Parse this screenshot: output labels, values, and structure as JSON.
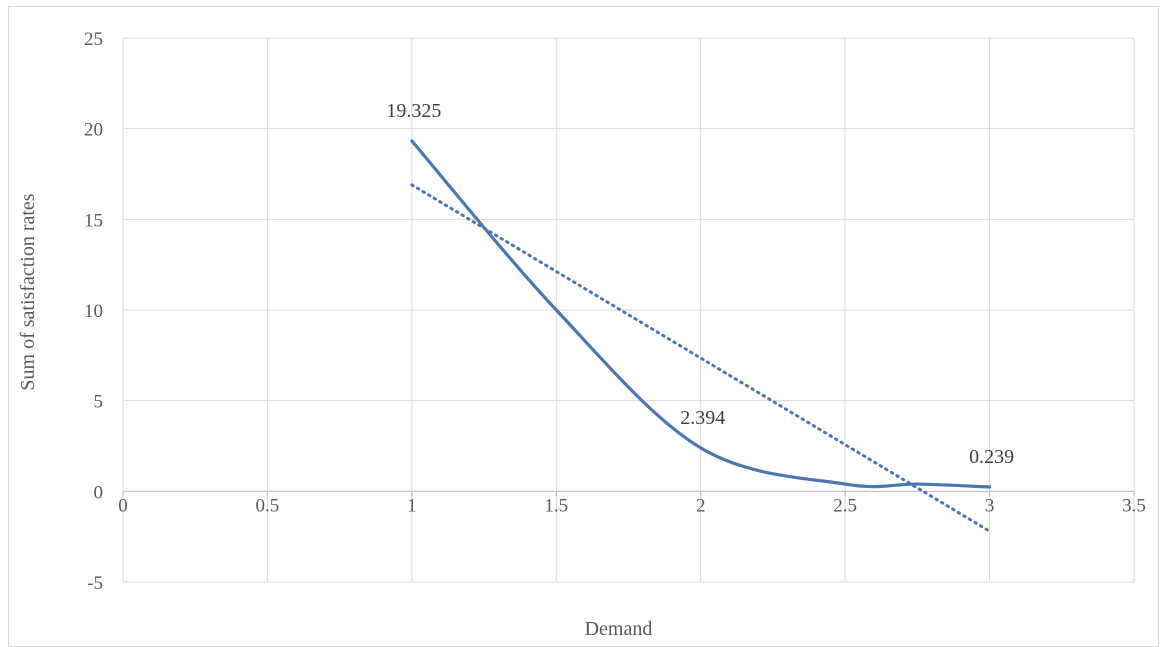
{
  "chart_data": {
    "type": "scatter",
    "title": "",
    "xlabel": "Demand",
    "ylabel": "Sum of satisfaction rates",
    "xlim": [
      0,
      3.5
    ],
    "ylim": [
      -5,
      25
    ],
    "x_ticks": [
      0,
      0.5,
      1,
      1.5,
      2,
      2.5,
      3,
      3.5
    ],
    "y_ticks": [
      -5,
      0,
      5,
      10,
      15,
      20,
      25
    ],
    "grid": true,
    "series": [
      {
        "style": "smoothed-line",
        "color": "#4a77b4",
        "points": [
          {
            "x": 1,
            "y": 19.325,
            "label": "19.325"
          },
          {
            "x": 1.5,
            "y": 10.0,
            "label": ""
          },
          {
            "x": 2,
            "y": 2.394,
            "label": "2.394"
          },
          {
            "x": 2.5,
            "y": 0.4,
            "label": ""
          },
          {
            "x": 2.75,
            "y": 0.4,
            "label": ""
          },
          {
            "x": 3,
            "y": 0.239,
            "label": "0.239"
          }
        ]
      }
    ],
    "trendline": {
      "kind": "linear",
      "style": "dotted",
      "color": "#4a77b4",
      "from": {
        "x": 1,
        "y": 16.9
      },
      "to": {
        "x": 3,
        "y": -2.2
      }
    }
  }
}
